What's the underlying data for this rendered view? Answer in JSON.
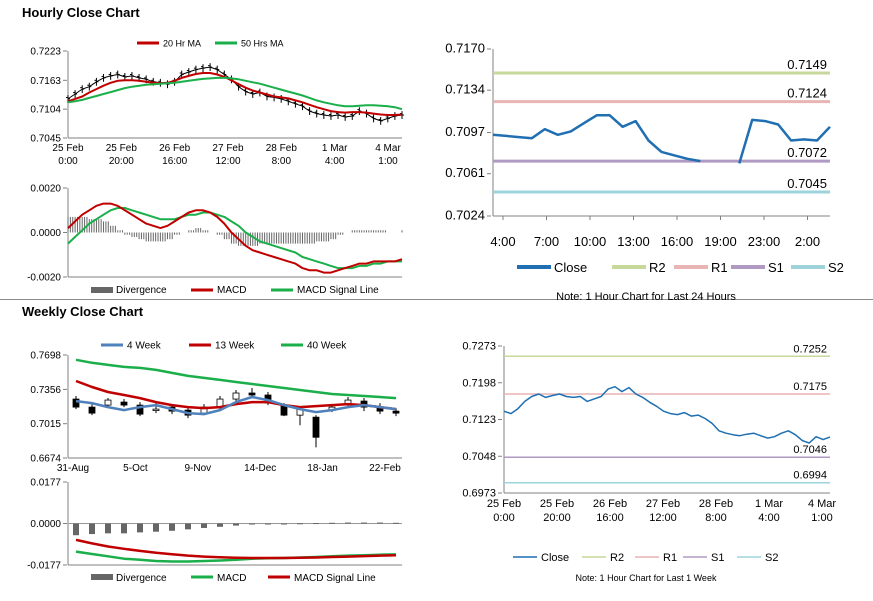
{
  "sections": {
    "hourly_title": "Hourly Close Chart",
    "weekly_title": "Weekly Close Chart"
  },
  "chart_data": [
    {
      "id": "hourly_price",
      "type": "line",
      "legend": [
        "20 Hr MA",
        "50 Hrs MA"
      ],
      "colors": {
        "close": "#000000",
        "ma20": "#c00000",
        "ma50": "#1aaf4a"
      },
      "ylim": [
        0.7045,
        0.7223
      ],
      "yticks": [
        "0.7223",
        "0.7163",
        "0.7104",
        "0.7045"
      ],
      "xticks": [
        [
          "25 Feb",
          "0:00"
        ],
        [
          "25 Feb",
          "20:00"
        ],
        [
          "26 Feb",
          "16:00"
        ],
        [
          "27 Feb",
          "12:00"
        ],
        [
          "28 Feb",
          "8:00"
        ],
        [
          "1 Mar",
          "4:00"
        ],
        [
          "4 Mar",
          "1:00"
        ]
      ],
      "close": [
        0.7125,
        0.7135,
        0.7145,
        0.715,
        0.716,
        0.7168,
        0.7172,
        0.7175,
        0.717,
        0.7172,
        0.7168,
        0.7165,
        0.716,
        0.7158,
        0.7155,
        0.716,
        0.7175,
        0.718,
        0.7185,
        0.7188,
        0.719,
        0.7185,
        0.7175,
        0.7165,
        0.715,
        0.714,
        0.7135,
        0.7138,
        0.713,
        0.7128,
        0.7125,
        0.712,
        0.7115,
        0.711,
        0.71,
        0.7095,
        0.7092,
        0.709,
        0.7092,
        0.7088,
        0.709,
        0.71,
        0.7095,
        0.7085,
        0.708,
        0.7085,
        0.709,
        0.7092
      ],
      "ma20": [
        0.712,
        0.7125,
        0.713,
        0.7138,
        0.7145,
        0.7152,
        0.7158,
        0.7162,
        0.7163,
        0.7163,
        0.7162,
        0.716,
        0.7158,
        0.7157,
        0.7158,
        0.7162,
        0.7168,
        0.7172,
        0.7176,
        0.7178,
        0.7178,
        0.7175,
        0.717,
        0.7163,
        0.7155,
        0.7148,
        0.7142,
        0.7138,
        0.7134,
        0.713,
        0.7128,
        0.7126,
        0.7122,
        0.7118,
        0.7113,
        0.7108,
        0.7104,
        0.71,
        0.7098,
        0.7097,
        0.7098,
        0.7098,
        0.7097,
        0.7095,
        0.7093,
        0.7092,
        0.7092,
        0.7093
      ],
      "ma50": [
        0.7118,
        0.712,
        0.7123,
        0.7127,
        0.7131,
        0.7135,
        0.7139,
        0.7143,
        0.7147,
        0.715,
        0.7152,
        0.7154,
        0.7155,
        0.7156,
        0.7157,
        0.7158,
        0.716,
        0.7162,
        0.7164,
        0.7166,
        0.7167,
        0.7168,
        0.7168,
        0.7167,
        0.7165,
        0.7162,
        0.7159,
        0.7156,
        0.7152,
        0.7148,
        0.7144,
        0.714,
        0.7136,
        0.7132,
        0.7127,
        0.7122,
        0.7118,
        0.7115,
        0.7112,
        0.711,
        0.711,
        0.7111,
        0.7112,
        0.7112,
        0.7111,
        0.711,
        0.7108,
        0.7104
      ]
    },
    {
      "id": "hourly_macd",
      "type": "line",
      "legend": [
        "Divergence",
        "MACD",
        "MACD Signal Line"
      ],
      "colors": {
        "divergence": "#666666",
        "macd": "#c00000",
        "signal": "#1aaf4a"
      },
      "ylim": [
        -0.002,
        0.002
      ],
      "yticks": [
        "0.0020",
        "0.0000",
        "-0.0020"
      ],
      "macd": [
        0.0002,
        0.0005,
        0.0008,
        0.001,
        0.0012,
        0.0013,
        0.0013,
        0.0012,
        0.001,
        0.0008,
        0.0006,
        0.0004,
        0.0003,
        0.0002,
        0.0003,
        0.0005,
        0.0007,
        0.0009,
        0.001,
        0.001,
        0.0009,
        0.0007,
        0.0004,
        0.0,
        -0.0003,
        -0.0006,
        -0.0008,
        -0.0009,
        -0.001,
        -0.0011,
        -0.0012,
        -0.0013,
        -0.0014,
        -0.0016,
        -0.0017,
        -0.0017,
        -0.0018,
        -0.0018,
        -0.0017,
        -0.0016,
        -0.0015,
        -0.0014,
        -0.0014,
        -0.0013,
        -0.0013,
        -0.0013,
        -0.0013,
        -0.0012
      ],
      "signal": [
        -0.0005,
        -0.0002,
        0.0001,
        0.0004,
        0.0006,
        0.0008,
        0.001,
        0.0011,
        0.0011,
        0.001,
        0.0009,
        0.0008,
        0.0007,
        0.0006,
        0.0006,
        0.0006,
        0.0007,
        0.0008,
        0.0008,
        0.0009,
        0.0009,
        0.0008,
        0.0007,
        0.0005,
        0.0003,
        0.0,
        -0.0002,
        -0.0004,
        -0.0005,
        -0.0006,
        -0.0007,
        -0.0008,
        -0.0009,
        -0.0011,
        -0.0012,
        -0.0013,
        -0.0014,
        -0.0015,
        -0.0016,
        -0.0016,
        -0.0016,
        -0.0015,
        -0.0015,
        -0.0014,
        -0.0014,
        -0.0013,
        -0.0013,
        -0.0013
      ]
    },
    {
      "id": "hourly_24h",
      "type": "line",
      "ylim": [
        0.7024,
        0.717
      ],
      "yticks": [
        "0.7170",
        "0.7134",
        "0.7097",
        "0.7061",
        "0.7024"
      ],
      "xticks": [
        "4:00",
        "7:00",
        "10:00",
        "13:00",
        "16:00",
        "19:00",
        "23:00",
        "2:00"
      ],
      "levels": {
        "R2": 0.7149,
        "R1": 0.7124,
        "S1": 0.7072,
        "S2": 0.7045
      },
      "level_labels": {
        "R2": "0.7149",
        "R1": "0.7124",
        "S1": "0.7072",
        "S2": "0.7045"
      },
      "close": [
        0.7095,
        0.7094,
        0.7093,
        0.7092,
        0.71,
        0.7095,
        0.7098,
        0.7105,
        0.7112,
        0.7112,
        0.7102,
        0.7107,
        0.709,
        0.708,
        0.7077,
        0.7074,
        0.7072,
        null,
        null,
        0.707,
        0.7108,
        0.7107,
        0.7104,
        0.709,
        0.7091,
        0.709,
        0.7102
      ],
      "legend": [
        "Close",
        "R2",
        "R1",
        "S1",
        "S2"
      ],
      "colors": {
        "close": "#1f6fb2",
        "R2": "#c6d99a",
        "R1": "#e8b4b4",
        "S1": "#b09ac4",
        "S2": "#9ed3dc"
      },
      "note": "Note: 1 Hour Chart for Last 24 Hours"
    },
    {
      "id": "weekly_price",
      "type": "line",
      "legend": [
        "4 Week",
        "13 Week",
        "40 Week"
      ],
      "colors": {
        "w4": "#4f81bd",
        "w13": "#c00000",
        "w40": "#1aaf4a"
      },
      "ylim": [
        0.6674,
        0.7698
      ],
      "yticks": [
        "0.7698",
        "0.7356",
        "0.7015",
        "0.6674"
      ],
      "xticks": [
        "31-Aug",
        "5-Oct",
        "9-Nov",
        "14-Dec",
        "18-Jan",
        "22-Feb"
      ],
      "w4": [
        0.724,
        0.722,
        0.718,
        0.715,
        0.718,
        0.72,
        0.716,
        0.712,
        0.711,
        0.715,
        0.723,
        0.728,
        0.725,
        0.72,
        0.716,
        0.713,
        0.715,
        0.718,
        0.72,
        0.718,
        0.716
      ],
      "w13": [
        0.744,
        0.738,
        0.733,
        0.73,
        0.727,
        0.723,
        0.72,
        0.718,
        0.717,
        0.718,
        0.721,
        0.723,
        0.723,
        0.72,
        0.718,
        0.719,
        0.72,
        0.721,
        0.72,
        0.718,
        0.716
      ],
      "w40": [
        0.765,
        0.762,
        0.76,
        0.758,
        0.757,
        0.755,
        0.752,
        0.749,
        0.747,
        0.745,
        0.743,
        0.741,
        0.739,
        0.737,
        0.735,
        0.733,
        0.731,
        0.73,
        0.729,
        0.728,
        0.727
      ],
      "candles": [
        [
          0.726,
          0.718,
          0.729,
          0.716
        ],
        [
          0.718,
          0.712,
          0.722,
          0.71
        ],
        [
          0.72,
          0.725,
          0.727,
          0.718
        ],
        [
          0.723,
          0.72,
          0.726,
          0.718
        ],
        [
          0.72,
          0.711,
          0.723,
          0.709
        ],
        [
          0.715,
          0.716,
          0.722,
          0.712
        ],
        [
          0.718,
          0.714,
          0.72,
          0.711
        ],
        [
          0.715,
          0.71,
          0.717,
          0.707
        ],
        [
          0.712,
          0.718,
          0.721,
          0.71
        ],
        [
          0.718,
          0.726,
          0.729,
          0.716
        ],
        [
          0.726,
          0.732,
          0.735,
          0.724
        ],
        [
          0.732,
          0.73,
          0.737,
          0.727
        ],
        [
          0.73,
          0.722,
          0.733,
          0.72
        ],
        [
          0.72,
          0.71,
          0.722,
          0.709
        ],
        [
          0.71,
          0.716,
          0.718,
          0.7
        ],
        [
          0.708,
          0.688,
          0.71,
          0.678
        ],
        [
          0.715,
          0.718,
          0.721,
          0.713
        ],
        [
          0.72,
          0.725,
          0.728,
          0.718
        ],
        [
          0.724,
          0.718,
          0.727,
          0.714
        ],
        [
          0.718,
          0.714,
          0.722,
          0.711
        ],
        [
          0.714,
          0.712,
          0.717,
          0.709
        ]
      ]
    },
    {
      "id": "weekly_macd",
      "type": "line",
      "legend": [
        "Divergence",
        "MACD",
        "MACD Signal Line"
      ],
      "colors": {
        "divergence": "#666666",
        "macd": "#1aaf4a",
        "signal": "#c00000"
      },
      "ylim": [
        -0.0177,
        0.0177
      ],
      "yticks": [
        "0.0177",
        "0.0000",
        "-0.0177"
      ],
      "macd": [
        -0.012,
        -0.013,
        -0.014,
        -0.015,
        -0.0155,
        -0.016,
        -0.0162,
        -0.0162,
        -0.016,
        -0.0158,
        -0.0155,
        -0.015,
        -0.0148,
        -0.0147,
        -0.0145,
        -0.0143,
        -0.014,
        -0.0137,
        -0.0135,
        -0.0133,
        -0.0132
      ],
      "signal": [
        -0.007,
        -0.0085,
        -0.0098,
        -0.0108,
        -0.0117,
        -0.0125,
        -0.0131,
        -0.0137,
        -0.0141,
        -0.0144,
        -0.0146,
        -0.0147,
        -0.0147,
        -0.0147,
        -0.0146,
        -0.0145,
        -0.0143,
        -0.0141,
        -0.0139,
        -0.0137,
        -0.0135
      ],
      "divergence": [
        -0.005,
        -0.0045,
        -0.0042,
        -0.0042,
        -0.0038,
        -0.0035,
        -0.0031,
        -0.0025,
        -0.0019,
        -0.0014,
        -0.0009,
        -0.0003,
        -0.0001,
        0.0,
        0.0001,
        0.0002,
        0.0003,
        0.0004,
        0.0004,
        0.0004,
        0.0003
      ]
    },
    {
      "id": "weekly_1w",
      "type": "line",
      "ylim": [
        0.6973,
        0.7273
      ],
      "yticks": [
        "0.7273",
        "0.7198",
        "0.7123",
        "0.7048",
        "0.6973"
      ],
      "xticks": [
        [
          "25 Feb",
          "0:00"
        ],
        [
          "25 Feb",
          "20:00"
        ],
        [
          "26 Feb",
          "16:00"
        ],
        [
          "27 Feb",
          "12:00"
        ],
        [
          "28 Feb",
          "8:00"
        ],
        [
          "1 Mar",
          "4:00"
        ],
        [
          "4 Mar",
          "1:00"
        ]
      ],
      "levels": {
        "R2": 0.7252,
        "R1": 0.7175,
        "S1": 0.7046,
        "S2": 0.6994
      },
      "level_labels": {
        "R2": "0.7252",
        "R1": "0.7175",
        "S1": "0.7046",
        "S2": "0.6994"
      },
      "close": [
        0.714,
        0.7135,
        0.7145,
        0.716,
        0.717,
        0.7175,
        0.7168,
        0.7172,
        0.7175,
        0.717,
        0.7168,
        0.717,
        0.716,
        0.7165,
        0.717,
        0.7185,
        0.719,
        0.718,
        0.7188,
        0.7175,
        0.7168,
        0.7158,
        0.715,
        0.714,
        0.7135,
        0.7133,
        0.7137,
        0.713,
        0.7132,
        0.7125,
        0.7115,
        0.71,
        0.7095,
        0.7092,
        0.709,
        0.7093,
        0.7095,
        0.709,
        0.7085,
        0.7088,
        0.7095,
        0.71,
        0.7092,
        0.708,
        0.7075,
        0.7088,
        0.7082,
        0.7087
      ],
      "legend": [
        "Close",
        "R2",
        "R1",
        "S1",
        "S2"
      ],
      "colors": {
        "close": "#1f6fb2",
        "R2": "#c6d99a",
        "R1": "#e8b4b4",
        "S1": "#b09ac4",
        "S2": "#9ed3dc"
      },
      "note": "Note: 1 Hour Chart for Last 1 Week"
    }
  ]
}
